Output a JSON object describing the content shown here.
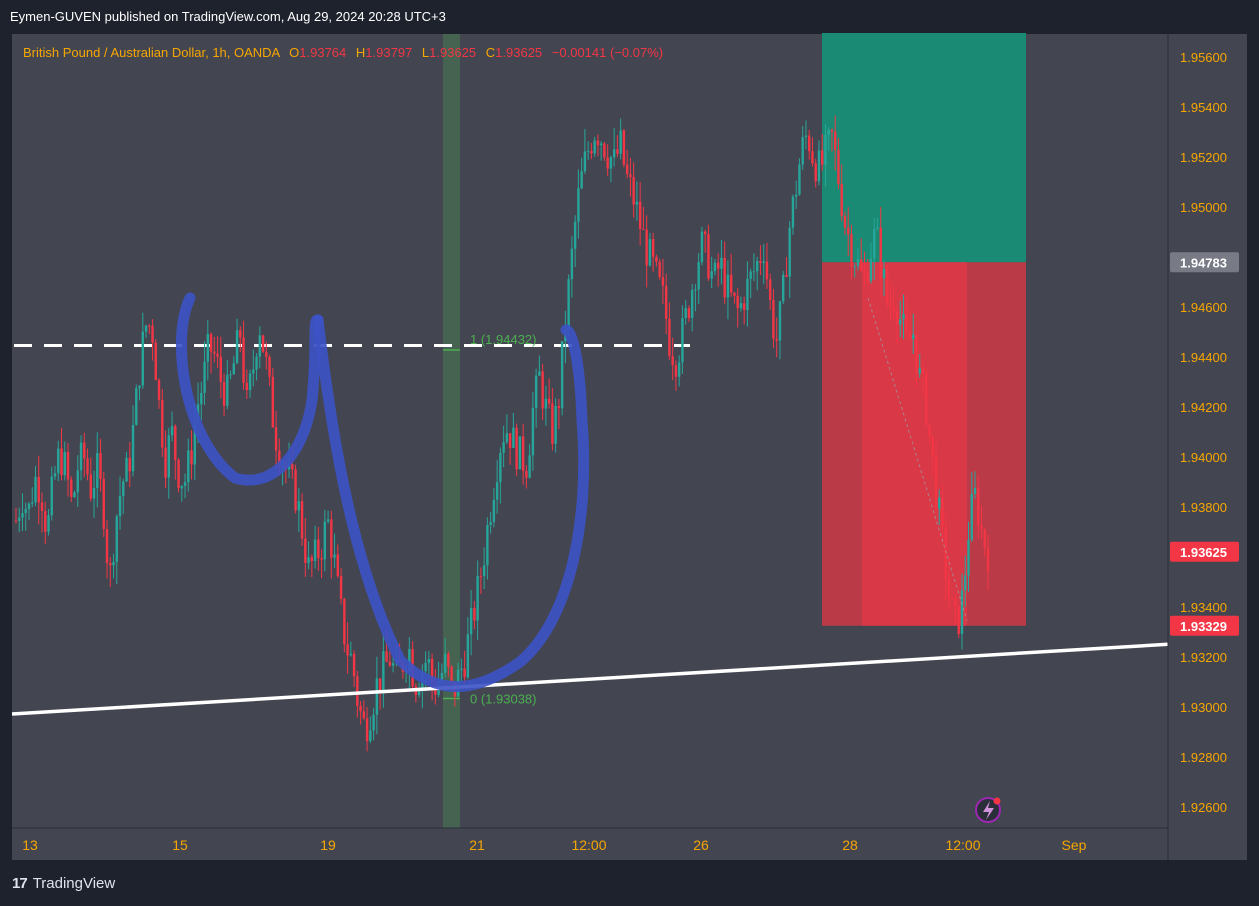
{
  "header": {
    "published_by": "Eymen-GUVEN published on TradingView.com, Aug 29, 2024 20:28 UTC+3"
  },
  "ohlc": {
    "symbol": "British Pound / Australian Dollar, 1h, OANDA",
    "o_label": "O",
    "o_value": "1.93764",
    "h_label": "H",
    "h_value": "1.93797",
    "l_label": "L",
    "l_value": "1.93625",
    "c_label": "C",
    "c_value": "1.93625",
    "change": "−0.00141 (−0.07%)"
  },
  "footer": {
    "logo_text": "TradingView"
  },
  "colors": {
    "background": "#434651",
    "up": "#26a69a",
    "down": "#f23645",
    "accent_blue": "#3d52c5",
    "profit_zone": "#1a8a74",
    "loss_zone": "#d03845",
    "price_label_bg": "#f23645",
    "text_orange": "#f7a600"
  },
  "chart_data": {
    "type": "candlestick",
    "title": "",
    "symbol": "GBPAUD",
    "ylim": [
      1.925,
      1.9575
    ],
    "y_ticks": [
      "1.95600",
      "1.95400",
      "1.95200",
      "1.95000",
      "1.94600",
      "1.94400",
      "1.94200",
      "1.94000",
      "1.93800",
      "1.93400",
      "1.93200",
      "1.93000",
      "1.92800",
      "1.92600"
    ],
    "x_ticks": [
      "13",
      "15",
      "19",
      "21",
      "12:00",
      "26",
      "28",
      "12:00",
      "Sep"
    ],
    "price_labels": {
      "entry": "1.94783",
      "current": "1.93625",
      "stop": "1.93329"
    },
    "annotations": {
      "fib_top": "1 (1.94432)",
      "fib_bottom": "0 (1.93038)"
    },
    "horizontal_level": 1.9445,
    "trendline": {
      "from": 1.92976,
      "to": 1.93255
    },
    "position": {
      "target": 1.957,
      "entry": 1.94783,
      "stop": 1.93329
    },
    "price_path": [
      1.9375,
      1.9385,
      1.9378,
      1.9392,
      1.9388,
      1.937,
      1.939,
      1.9402,
      1.9395,
      1.938,
      1.9398,
      1.94,
      1.9388,
      1.9395,
      1.9382,
      1.935,
      1.9375,
      1.939,
      1.9395,
      1.9415,
      1.944,
      1.9455,
      1.945,
      1.942,
      1.94,
      1.941,
      1.9395,
      1.939,
      1.94,
      1.942,
      1.943,
      1.9445,
      1.944,
      1.943,
      1.9425,
      1.9438,
      1.945,
      1.942,
      1.9435,
      1.9455,
      1.944,
      1.942,
      1.9405,
      1.9398,
      1.939,
      1.9385,
      1.937,
      1.9355,
      1.936,
      1.9365,
      1.9375,
      1.936,
      1.934,
      1.9325,
      1.9318,
      1.93,
      1.9292,
      1.93,
      1.931,
      1.9315,
      1.932,
      1.9312,
      1.9318,
      1.9325,
      1.931,
      1.9315,
      1.932,
      1.9308,
      1.9312,
      1.9318,
      1.9305,
      1.9312,
      1.932,
      1.9332,
      1.9345,
      1.936,
      1.9378,
      1.9395,
      1.941,
      1.9412,
      1.9405,
      1.94,
      1.9398,
      1.942,
      1.9432,
      1.942,
      1.941,
      1.942,
      1.945,
      1.9475,
      1.95,
      1.9515,
      1.9525,
      1.9532,
      1.9528,
      1.9522,
      1.9518,
      1.9525,
      1.9512,
      1.9505,
      1.9495,
      1.9485,
      1.9478,
      1.947,
      1.9462,
      1.9445,
      1.944,
      1.945,
      1.9462,
      1.9475,
      1.9485,
      1.948,
      1.947,
      1.9478,
      1.9468,
      1.9462,
      1.9458,
      1.9466,
      1.9472,
      1.9478,
      1.9485,
      1.9462,
      1.9446,
      1.9462,
      1.949,
      1.9505,
      1.9522,
      1.953,
      1.952,
      1.9515,
      1.9522,
      1.9528,
      1.9512,
      1.9495,
      1.9485,
      1.9478,
      1.947,
      1.9482,
      1.949,
      1.9475,
      1.946,
      1.9465,
      1.9455,
      1.9445,
      1.945,
      1.9432,
      1.9422,
      1.94,
      1.938,
      1.936,
      1.934,
      1.9332,
      1.9345,
      1.9375,
      1.9385,
      1.937,
      1.93625
    ]
  }
}
